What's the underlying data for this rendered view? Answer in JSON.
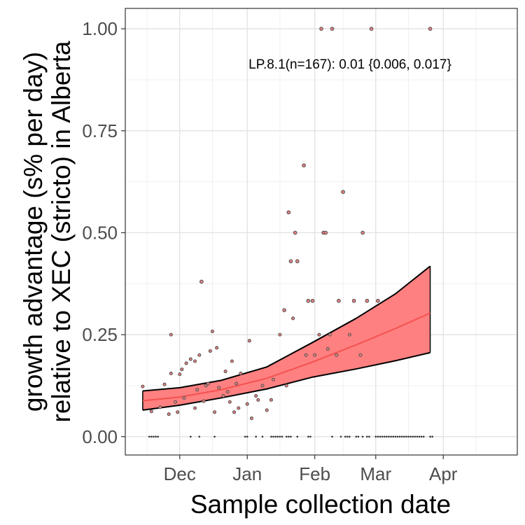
{
  "chart_data": {
    "type": "scatter",
    "title": "",
    "xlabel": "Sample collection date",
    "ylabel_line1": "growth advantage (s% per day)",
    "ylabel_line2": "relative to XEC (stricto) in Alberta",
    "annotation": "LP.8.1(n=167): 0.01 {0.006, 0.017}",
    "x_range": [
      "2024-11-06",
      "2025-05-05"
    ],
    "ylim": [
      -0.045,
      1.05
    ],
    "grid": true,
    "x_ticks": [
      {
        "date": "2024-12-01",
        "label": "Dec"
      },
      {
        "date": "2025-01-01",
        "label": "Jan"
      },
      {
        "date": "2025-02-01",
        "label": "Feb"
      },
      {
        "date": "2025-03-01",
        "label": "Mar"
      },
      {
        "date": "2025-04-01",
        "label": "Apr"
      }
    ],
    "x_minor_grid": [
      "2024-11-16",
      "2024-12-16",
      "2025-01-16",
      "2025-02-14",
      "2025-03-16",
      "2025-04-16"
    ],
    "y_ticks": [
      {
        "value": 0.0,
        "label": "0.00"
      },
      {
        "value": 0.25,
        "label": "0.25"
      },
      {
        "value": 0.5,
        "label": "0.50"
      },
      {
        "value": 0.75,
        "label": "0.75"
      },
      {
        "value": 1.0,
        "label": "1.00"
      }
    ],
    "y_minor_grid": [
      0.125,
      0.375,
      0.625,
      0.875
    ],
    "fit": {
      "x": [
        "2024-11-14",
        "2024-12-01",
        "2024-12-20",
        "2025-01-10",
        "2025-01-31",
        "2025-02-20",
        "2025-03-10",
        "2025-03-26"
      ],
      "mean": [
        0.088,
        0.097,
        0.115,
        0.143,
        0.183,
        0.225,
        0.265,
        0.303
      ],
      "lower": [
        0.065,
        0.077,
        0.095,
        0.117,
        0.146,
        0.166,
        0.186,
        0.206
      ],
      "upper": [
        0.112,
        0.12,
        0.138,
        0.171,
        0.231,
        0.29,
        0.35,
        0.418
      ],
      "line_color": "#f3524f",
      "ribbon_color": "#ff8080",
      "ribbon_edge_color": "#000000"
    },
    "points": [
      [
        "2024-11-14",
        0.123
      ],
      [
        "2024-11-18",
        0.062
      ],
      [
        "2024-11-22",
        0.072
      ],
      [
        "2024-11-24",
        0.128
      ],
      [
        "2024-11-26",
        0.055
      ],
      [
        "2024-11-27",
        0.155
      ],
      [
        "2024-11-27",
        0.25
      ],
      [
        "2024-11-29",
        0.085
      ],
      [
        "2024-11-30",
        0.06
      ],
      [
        "2024-12-01",
        0.153
      ],
      [
        "2024-12-02",
        0.165
      ],
      [
        "2024-12-03",
        0.095
      ],
      [
        "2024-12-04",
        0.18
      ],
      [
        "2024-12-06",
        0.19
      ],
      [
        "2024-12-08",
        0.07
      ],
      [
        "2024-12-08",
        0.185
      ],
      [
        "2024-12-09",
        0.115
      ],
      [
        "2024-12-10",
        0.2
      ],
      [
        "2024-12-11",
        0.38
      ],
      [
        "2024-12-12",
        0.087
      ],
      [
        "2024-12-13",
        0.125
      ],
      [
        "2024-12-14",
        0.13
      ],
      [
        "2024-12-15",
        0.21
      ],
      [
        "2024-12-16",
        0.258
      ],
      [
        "2024-12-17",
        0.06
      ],
      [
        "2024-12-18",
        0.218
      ],
      [
        "2024-12-19",
        0.12
      ],
      [
        "2024-12-21",
        0.1
      ],
      [
        "2024-12-22",
        0.16
      ],
      [
        "2024-12-23",
        0.11
      ],
      [
        "2024-12-24",
        0.085
      ],
      [
        "2024-12-25",
        0.185
      ],
      [
        "2024-12-26",
        0.06
      ],
      [
        "2024-12-27",
        0.13
      ],
      [
        "2024-12-28",
        0.07
      ],
      [
        "2024-12-29",
        0.155
      ],
      [
        "2025-01-01",
        0.08
      ],
      [
        "2025-01-02",
        0.235
      ],
      [
        "2025-01-03",
        0.045
      ],
      [
        "2025-01-05",
        0.1
      ],
      [
        "2025-01-06",
        0.09
      ],
      [
        "2025-01-08",
        0.125
      ],
      [
        "2025-01-10",
        0.065
      ],
      [
        "2025-01-12",
        0.09
      ],
      [
        "2025-01-13",
        0.14
      ],
      [
        "2025-01-16",
        0.25
      ],
      [
        "2025-01-18",
        0.31
      ],
      [
        "2025-01-19",
        0.125
      ],
      [
        "2025-01-20",
        0.55
      ],
      [
        "2025-01-21",
        0.43
      ],
      [
        "2025-01-22",
        0.29
      ],
      [
        "2025-01-23",
        0.5
      ],
      [
        "2025-01-24",
        0.43
      ],
      [
        "2025-01-27",
        0.665
      ],
      [
        "2025-01-28",
        0.2
      ],
      [
        "2025-01-29",
        0.333
      ],
      [
        "2025-01-31",
        0.333
      ],
      [
        "2025-02-01",
        0.2
      ],
      [
        "2025-02-03",
        0.25
      ],
      [
        "2025-02-04",
        1.0
      ],
      [
        "2025-02-05",
        0.5
      ],
      [
        "2025-02-06",
        0.5
      ],
      [
        "2025-02-07",
        0.215
      ],
      [
        "2025-02-08",
        0.25
      ],
      [
        "2025-02-09",
        1.0
      ],
      [
        "2025-02-11",
        0.2
      ],
      [
        "2025-02-12",
        0.333
      ],
      [
        "2025-02-14",
        0.6
      ],
      [
        "2025-02-17",
        0.25
      ],
      [
        "2025-02-19",
        0.333
      ],
      [
        "2025-02-22",
        0.2
      ],
      [
        "2025-02-23",
        0.5
      ],
      [
        "2025-02-25",
        0.333
      ],
      [
        "2025-02-27",
        1.0
      ],
      [
        "2025-03-02",
        0.333
      ],
      [
        "2025-03-26",
        1.0
      ]
    ],
    "zero_points_x": [
      "2024-11-17",
      "2024-11-18",
      "2024-11-19",
      "2024-11-20",
      "2024-11-21",
      "2024-12-06",
      "2024-12-10",
      "2024-12-17",
      "2024-12-31",
      "2025-01-01",
      "2025-01-05",
      "2025-01-08",
      "2025-01-12",
      "2025-01-13",
      "2025-01-14",
      "2025-01-15",
      "2025-01-16",
      "2025-01-17",
      "2025-01-19",
      "2025-01-20",
      "2025-01-21",
      "2025-01-24",
      "2025-01-29",
      "2025-01-30",
      "2025-02-09",
      "2025-02-13",
      "2025-02-15",
      "2025-02-16",
      "2025-02-17",
      "2025-02-20",
      "2025-02-21",
      "2025-02-23",
      "2025-02-25",
      "2025-02-26",
      "2025-03-01",
      "2025-03-02",
      "2025-03-03",
      "2025-03-04",
      "2025-03-05",
      "2025-03-06",
      "2025-03-07",
      "2025-03-08",
      "2025-03-09",
      "2025-03-10",
      "2025-03-11",
      "2025-03-12",
      "2025-03-13",
      "2025-03-14",
      "2025-03-15",
      "2025-03-16",
      "2025-03-17",
      "2025-03-18",
      "2025-03-19",
      "2025-03-20",
      "2025-03-21",
      "2025-03-22",
      "2025-03-23",
      "2025-03-26",
      "2025-03-27"
    ],
    "point_fill": "#f08080",
    "point_edge": "#555555"
  }
}
